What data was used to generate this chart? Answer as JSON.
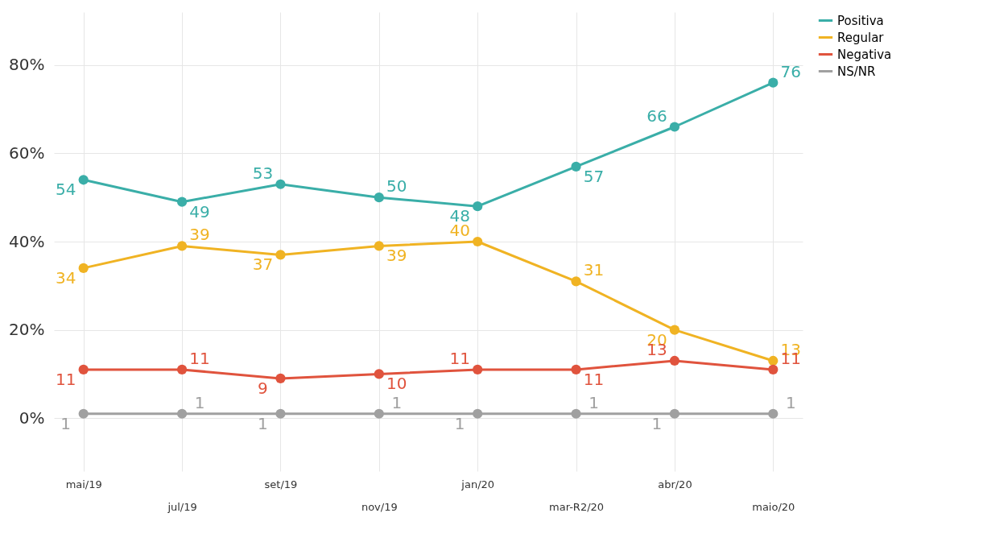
{
  "chart_data": {
    "type": "line",
    "categories": [
      "mai/19",
      "jul/19",
      "set/19",
      "nov/19",
      "jan/20",
      "mar-R2/20",
      "abr/20",
      "maio/20"
    ],
    "series": [
      {
        "name": "Positiva",
        "color": "#3aaea8",
        "values": [
          54,
          49,
          53,
          50,
          48,
          57,
          66,
          76
        ]
      },
      {
        "name": "Regular",
        "color": "#f0b323",
        "values": [
          34,
          39,
          37,
          39,
          40,
          31,
          20,
          13
        ]
      },
      {
        "name": "Negativa",
        "color": "#e0533d",
        "values": [
          11,
          11,
          9,
          10,
          11,
          11,
          13,
          11
        ]
      },
      {
        "name": "NS/NR",
        "color": "#a0a0a0",
        "values": [
          1,
          1,
          1,
          1,
          1,
          1,
          1,
          1
        ]
      }
    ],
    "ylim": [
      -12,
      92
    ],
    "yticks": [
      {
        "value": 0,
        "label": "0%"
      },
      {
        "value": 20,
        "label": "20%"
      },
      {
        "value": 40,
        "label": "40%"
      },
      {
        "value": 60,
        "label": "60%"
      },
      {
        "value": 80,
        "label": "80%"
      }
    ],
    "grid": true,
    "legend": "right",
    "marker": "circle",
    "line_style": "solid",
    "data_labels": true
  }
}
